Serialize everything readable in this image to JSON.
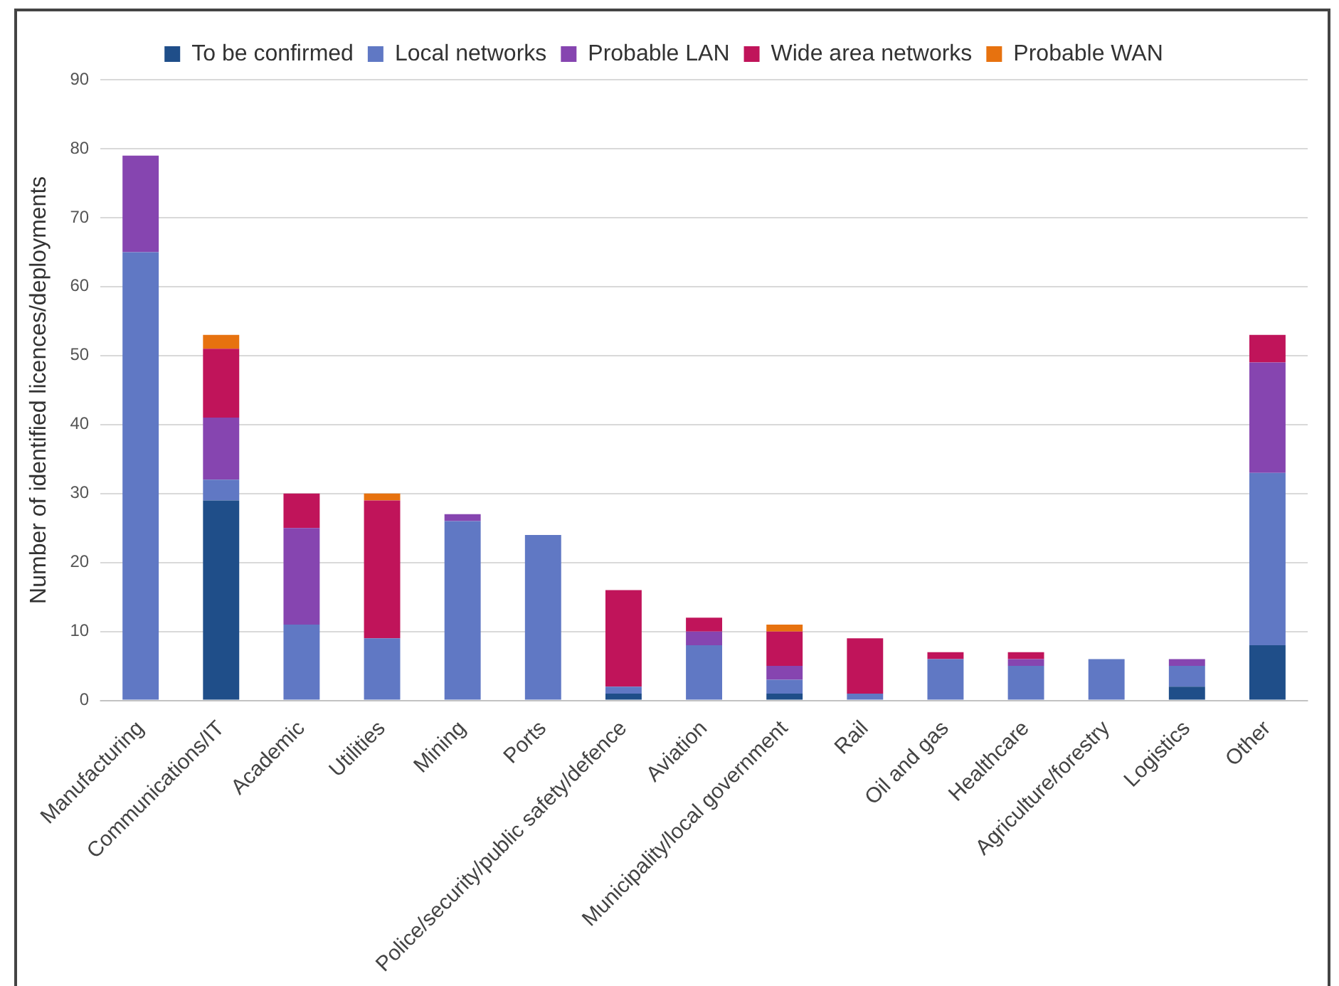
{
  "chart_data": {
    "type": "bar",
    "stacked": true,
    "ylabel": "Number of identified licences/deployments",
    "categories": [
      "Manufacturing",
      "Communications/IT",
      "Academic",
      "Utilities",
      "Mining",
      "Ports",
      "Police/security/public safety/defence",
      "Aviation",
      "Municipality/local government",
      "Rail",
      "Oil and gas",
      "Healthcare",
      "Agriculture/forestry",
      "Logistics",
      "Other"
    ],
    "series": [
      {
        "name": "To be confirmed",
        "color": "#1f4e89",
        "values": [
          0,
          29,
          0,
          0,
          0,
          0,
          1,
          0,
          1,
          0,
          0,
          0,
          0,
          2,
          8
        ]
      },
      {
        "name": "Local networks",
        "color": "#6078c4",
        "values": [
          65,
          3,
          11,
          9,
          26,
          24,
          1,
          8,
          2,
          1,
          6,
          5,
          6,
          3,
          25
        ]
      },
      {
        "name": "Probable LAN",
        "color": "#8645b0",
        "values": [
          14,
          9,
          14,
          0,
          1,
          0,
          0,
          2,
          2,
          0,
          0,
          1,
          0,
          1,
          16
        ]
      },
      {
        "name": "Wide area networks",
        "color": "#c0145a",
        "values": [
          0,
          10,
          5,
          20,
          0,
          0,
          14,
          2,
          5,
          8,
          1,
          1,
          0,
          0,
          4
        ]
      },
      {
        "name": "Probable WAN",
        "color": "#e7720f",
        "values": [
          0,
          2,
          0,
          1,
          0,
          0,
          0,
          0,
          1,
          0,
          0,
          0,
          0,
          0,
          0
        ]
      }
    ],
    "ylim": [
      0,
      90
    ],
    "yticks": [
      0,
      10,
      20,
      30,
      40,
      50,
      60,
      70,
      80,
      90
    ],
    "grid": "y",
    "legend": "top"
  }
}
